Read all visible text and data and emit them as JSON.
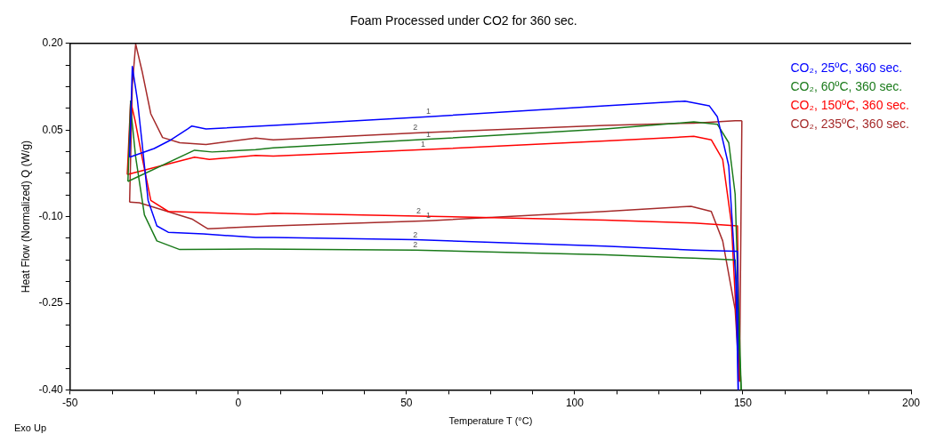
{
  "chart_data": {
    "type": "line",
    "title": "Foam Processed under CO2 for 360 sec.",
    "xlabel": "Temperature T (°C)",
    "ylabel": "Heat Flow (Normalized) Q (W/g)",
    "xlim": [
      -50,
      200
    ],
    "ylim": [
      -0.4,
      0.2
    ],
    "xticks": [
      -50,
      {
        "value": -37.5,
        "label": null
      },
      {
        "value": -25,
        "label": null
      },
      {
        "value": -12.5,
        "label": null
      },
      0,
      {
        "value": 12.5,
        "label": null
      },
      {
        "value": 25,
        "label": null
      },
      {
        "value": 37.5,
        "label": null
      },
      50,
      {
        "value": 62.5,
        "label": null
      },
      {
        "value": 75,
        "label": null
      },
      {
        "value": 87.5,
        "label": null
      },
      100,
      {
        "value": 112.5,
        "label": null
      },
      {
        "value": 125,
        "label": null
      },
      {
        "value": 137.5,
        "label": null
      },
      150,
      {
        "value": 162.5,
        "label": null
      },
      {
        "value": 175,
        "label": null
      },
      {
        "value": 187.5,
        "label": null
      },
      200
    ],
    "yticks": [
      {
        "value": -0.4,
        "label": "-0.40"
      },
      {
        "value": -0.3625,
        "label": null
      },
      {
        "value": -0.325,
        "label": null
      },
      {
        "value": -0.2875,
        "label": null
      },
      {
        "value": -0.25,
        "label": "-0.25"
      },
      {
        "value": -0.2125,
        "label": null
      },
      {
        "value": -0.175,
        "label": null
      },
      {
        "value": -0.1375,
        "label": null
      },
      {
        "value": -0.1,
        "label": "-0.10"
      },
      {
        "value": -0.0625,
        "label": null
      },
      {
        "value": -0.025,
        "label": null
      },
      {
        "value": 0.0125,
        "label": null
      },
      {
        "value": 0.05,
        "label": "0.05"
      },
      {
        "value": 0.0875,
        "label": null
      },
      {
        "value": 0.125,
        "label": null
      },
      {
        "value": 0.1625,
        "label": null
      },
      {
        "value": 0.2,
        "label": "0.20"
      }
    ],
    "grid": false,
    "marker": "none",
    "line_style": "solid",
    "series": [
      {
        "name": "CO₂, 25ºC, 360 sec.",
        "color": "#0000ff",
        "x": [
          -32.3,
          -25,
          -20,
          -15,
          -13.8,
          -9.6,
          10.4,
          56.5,
          109,
          132.8,
          140,
          142.4,
          145.8,
          147.9,
          148.6
        ],
        "values": [
          0.003,
          0.018,
          0.033,
          0.052,
          0.057,
          0.052,
          0.058,
          0.073,
          0.092,
          0.1,
          0.092,
          0.073,
          -0.012,
          -0.21,
          -0.4
        ]
      },
      {
        "color": "#0000ff",
        "x": [
          -32.3,
          -31.5,
          -30,
          -28.6,
          -26.8,
          -24.2,
          -20.8,
          -10.4,
          5.2,
          10.4,
          52.6,
          109,
          135.4,
          147.7,
          148.4,
          148.6
        ],
        "values": [
          0.003,
          0.16,
          0.103,
          0.028,
          -0.072,
          -0.116,
          -0.127,
          -0.13,
          -0.136,
          -0.136,
          -0.14,
          -0.151,
          -0.158,
          -0.16,
          -0.16,
          -0.4
        ]
      },
      {
        "name": "CO₂, 60ºC, 360 sec.",
        "color": "#1a7a1a",
        "x": [
          -32.8,
          -13,
          -7.8,
          5.2,
          10.4,
          56.5,
          109,
          135.4,
          142.4,
          145.8,
          147.7,
          149.5
        ],
        "values": [
          -0.039,
          0.015,
          0.012,
          0.016,
          0.019,
          0.034,
          0.052,
          0.064,
          0.06,
          0.028,
          -0.061,
          -0.4
        ]
      },
      {
        "color": "#1a7a1a",
        "x": [
          -32.8,
          -32,
          -31.8,
          -30.5,
          -27.9,
          -24.2,
          -17.4,
          5.2,
          52.6,
          109,
          135.4,
          147.7,
          149.5
        ],
        "values": [
          -0.039,
          0.1,
          0.078,
          0.003,
          -0.097,
          -0.142,
          -0.157,
          -0.156,
          -0.158,
          -0.166,
          -0.172,
          -0.175,
          -0.4
        ]
      },
      {
        "name": "CO₂, 150ºC, 360 sec.",
        "color": "#ff0000",
        "x": [
          -33,
          -13,
          -8.6,
          5.2,
          10.4,
          54.9,
          109,
          135.4,
          140.6,
          144,
          146.6,
          149
        ],
        "values": [
          -0.027,
          0.003,
          -0.001,
          0.006,
          0.005,
          0.016,
          0.031,
          0.039,
          0.033,
          -0.001,
          -0.112,
          -0.385
        ]
      },
      {
        "color": "#ff0000",
        "x": [
          -33,
          -32,
          -30.7,
          -28.6,
          -26,
          -20.8,
          5.2,
          10.4,
          53.6,
          109,
          135.4,
          148.4,
          149
        ],
        "values": [
          -0.027,
          0.1,
          0.067,
          0.003,
          -0.072,
          -0.091,
          -0.096,
          -0.094,
          -0.099,
          -0.106,
          -0.111,
          -0.116,
          -0.385
        ]
      },
      {
        "name": "CO₂, 235ºC, 360 sec.",
        "color": "#a52a2a",
        "x": [
          -32.3,
          -29.4,
          -13.8,
          -9.1,
          5.2,
          10.4,
          56.5,
          109,
          134.6,
          140.6,
          144,
          147.7,
          149,
          149.7
        ],
        "values": [
          -0.075,
          -0.076,
          -0.104,
          -0.121,
          -0.117,
          -0.116,
          -0.107,
          -0.091,
          -0.082,
          -0.091,
          -0.142,
          -0.261,
          -0.385,
          0.066
        ]
      },
      {
        "color": "#a52a2a",
        "x": [
          -32.3,
          -31.5,
          -30.5,
          -28.6,
          -26,
          -22.5,
          -17.4,
          -9.6,
          5.2,
          10.4,
          52.6,
          109,
          135.4,
          147.7,
          149.7
        ],
        "values": [
          -0.075,
          0.127,
          0.199,
          0.152,
          0.078,
          0.037,
          0.028,
          0.025,
          0.036,
          0.033,
          0.045,
          0.058,
          0.062,
          0.066,
          0.066
        ]
      }
    ],
    "annotations": [
      "Exo Up",
      {
        "text": "1",
        "x": 56.5,
        "y": 0.073
      },
      {
        "text": "2",
        "x": 52.6,
        "y": 0.045
      },
      {
        "text": "1",
        "x": 56.5,
        "y": 0.034
      },
      {
        "text": "1",
        "x": 54.9,
        "y": 0.016
      },
      {
        "text": "2",
        "x": 53.6,
        "y": -0.099
      },
      {
        "text": "1",
        "x": 56.5,
        "y": -0.107
      },
      {
        "text": "2",
        "x": 52.6,
        "y": -0.14
      },
      {
        "text": "2",
        "x": 52.6,
        "y": -0.158
      }
    ]
  }
}
